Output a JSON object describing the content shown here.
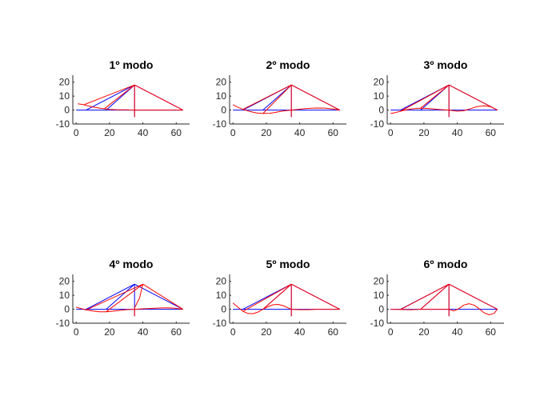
{
  "colors": {
    "structure": "#0000ff",
    "mode_shape": "#ff0000",
    "axis": "#262626",
    "background": "#ffffff"
  },
  "chart_data": [
    {
      "type": "line",
      "title": "1º modo",
      "xlim": [
        -2,
        68
      ],
      "ylim": [
        -10,
        25
      ],
      "xticks": [
        0,
        20,
        40,
        60
      ],
      "yticks": [
        -10,
        0,
        10,
        20
      ],
      "series": [
        {
          "color": "#0000ff",
          "segments": [
            [
              [
                0,
                0
              ],
              [
                64,
                0
              ]
            ],
            [
              [
                35,
                -5
              ],
              [
                35,
                18
              ]
            ],
            [
              [
                6,
                0
              ],
              [
                35,
                18
              ]
            ],
            [
              [
                18,
                0
              ],
              [
                35,
                18
              ]
            ],
            [
              [
                35,
                18
              ],
              [
                64,
                0
              ]
            ]
          ]
        },
        {
          "color": "#ff0000",
          "segments": [
            [
              [
                1,
                4.5
              ],
              [
                4,
                4
              ],
              [
                7,
                3
              ],
              [
                11,
                2
              ],
              [
                15,
                1.2
              ],
              [
                20,
                0.5
              ],
              [
                25,
                0.2
              ],
              [
                30,
                0.2
              ],
              [
                35,
                0
              ],
              [
                45,
                0
              ],
              [
                55,
                0
              ],
              [
                64,
                0
              ]
            ],
            [
              [
                5,
                4
              ],
              [
                35,
                18
              ]
            ],
            [
              [
                17,
                1
              ],
              [
                35,
                18
              ]
            ],
            [
              [
                35,
                18
              ],
              [
                64,
                0
              ]
            ],
            [
              [
                35,
                -5
              ],
              [
                35,
                18
              ]
            ]
          ]
        }
      ]
    },
    {
      "type": "line",
      "title": "2º modo",
      "xlim": [
        -2,
        68
      ],
      "ylim": [
        -10,
        25
      ],
      "xticks": [
        0,
        20,
        40,
        60
      ],
      "yticks": [
        -10,
        0,
        10,
        20
      ],
      "series": [
        {
          "color": "#0000ff",
          "segments": [
            [
              [
                0,
                0
              ],
              [
                64,
                0
              ]
            ],
            [
              [
                35,
                -5
              ],
              [
                35,
                18
              ]
            ],
            [
              [
                6,
                0
              ],
              [
                35,
                18
              ]
            ],
            [
              [
                18,
                0
              ],
              [
                35,
                18
              ]
            ],
            [
              [
                35,
                18
              ],
              [
                64,
                0
              ]
            ]
          ]
        },
        {
          "color": "#ff0000",
          "segments": [
            [
              [
                0,
                3.8
              ],
              [
                3,
                2
              ],
              [
                6,
                0.5
              ],
              [
                10,
                -1
              ],
              [
                14,
                -2
              ],
              [
                18,
                -2.5
              ],
              [
                22,
                -2.3
              ],
              [
                26,
                -1.5
              ],
              [
                30,
                -0.7
              ],
              [
                35,
                0
              ],
              [
                40,
                0.6
              ],
              [
                45,
                1.2
              ],
              [
                50,
                1.5
              ],
              [
                55,
                1.4
              ],
              [
                60,
                0.8
              ],
              [
                64,
                0
              ]
            ],
            [
              [
                6,
                0.5
              ],
              [
                35,
                18
              ]
            ],
            [
              [
                18,
                -2.5
              ],
              [
                35,
                18
              ]
            ],
            [
              [
                35,
                18
              ],
              [
                64,
                0
              ]
            ],
            [
              [
                35,
                -5
              ],
              [
                35,
                18
              ]
            ]
          ]
        }
      ]
    },
    {
      "type": "line",
      "title": "3º modo",
      "xlim": [
        -2,
        68
      ],
      "ylim": [
        -10,
        25
      ],
      "xticks": [
        0,
        20,
        40,
        60
      ],
      "yticks": [
        -10,
        0,
        10,
        20
      ],
      "series": [
        {
          "color": "#0000ff",
          "segments": [
            [
              [
                0,
                0
              ],
              [
                64,
                0
              ]
            ],
            [
              [
                35,
                -5
              ],
              [
                35,
                18
              ]
            ],
            [
              [
                6,
                0
              ],
              [
                35,
                18
              ]
            ],
            [
              [
                18,
                0
              ],
              [
                35,
                18
              ]
            ],
            [
              [
                35,
                18
              ],
              [
                64,
                0
              ]
            ]
          ]
        },
        {
          "color": "#ff0000",
          "segments": [
            [
              [
                0,
                -2.5
              ],
              [
                3,
                -1.8
              ],
              [
                6,
                -0.8
              ],
              [
                10,
                0.3
              ],
              [
                14,
                1
              ],
              [
                18,
                1.3
              ],
              [
                22,
                1.2
              ],
              [
                26,
                0.8
              ],
              [
                30,
                0.3
              ],
              [
                35,
                0
              ],
              [
                40,
                -0.8
              ],
              [
                44,
                -0.5
              ],
              [
                48,
                1
              ],
              [
                52,
                2.5
              ],
              [
                56,
                3
              ],
              [
                60,
                2.4
              ],
              [
                64,
                0
              ]
            ],
            [
              [
                6,
                -0.8
              ],
              [
                35,
                18
              ]
            ],
            [
              [
                18,
                1.3
              ],
              [
                35,
                18
              ]
            ],
            [
              [
                35,
                18
              ],
              [
                64,
                0
              ]
            ],
            [
              [
                35,
                -5
              ],
              [
                35,
                18
              ]
            ]
          ]
        }
      ]
    },
    {
      "type": "line",
      "title": "4º modo",
      "xlim": [
        -2,
        68
      ],
      "ylim": [
        -10,
        25
      ],
      "xticks": [
        0,
        20,
        40,
        60
      ],
      "yticks": [
        -10,
        0,
        10,
        20
      ],
      "series": [
        {
          "color": "#0000ff",
          "segments": [
            [
              [
                0,
                0
              ],
              [
                64,
                0
              ]
            ],
            [
              [
                35,
                -5
              ],
              [
                35,
                18
              ]
            ],
            [
              [
                6,
                0
              ],
              [
                35,
                18
              ]
            ],
            [
              [
                18,
                0
              ],
              [
                35,
                18
              ]
            ],
            [
              [
                35,
                18
              ],
              [
                64,
                0
              ]
            ]
          ]
        },
        {
          "color": "#ff0000",
          "segments": [
            [
              [
                0,
                1.5
              ],
              [
                3,
                0.5
              ],
              [
                6,
                -0.5
              ],
              [
                10,
                -1.3
              ],
              [
                14,
                -1.8
              ],
              [
                18,
                -1.8
              ],
              [
                22,
                -1.4
              ],
              [
                26,
                -0.8
              ],
              [
                30,
                -0.3
              ],
              [
                35,
                0
              ],
              [
                40,
                0.3
              ],
              [
                45,
                0.6
              ],
              [
                50,
                0.9
              ],
              [
                55,
                1
              ],
              [
                60,
                0.7
              ],
              [
                64,
                0
              ]
            ],
            [
              [
                6,
                -0.5
              ],
              [
                40,
                18
              ]
            ],
            [
              [
                18,
                -1.8
              ],
              [
                40,
                18
              ]
            ],
            [
              [
                40,
                18
              ],
              [
                64,
                0
              ]
            ],
            [
              [
                35,
                -5
              ],
              [
                35,
                1
              ],
              [
                38,
                8
              ],
              [
                40,
                18
              ]
            ]
          ]
        }
      ]
    },
    {
      "type": "line",
      "title": "5º modo",
      "xlim": [
        -2,
        68
      ],
      "ylim": [
        -10,
        25
      ],
      "xticks": [
        0,
        20,
        40,
        60
      ],
      "yticks": [
        -10,
        0,
        10,
        20
      ],
      "series": [
        {
          "color": "#0000ff",
          "segments": [
            [
              [
                0,
                0
              ],
              [
                64,
                0
              ]
            ],
            [
              [
                35,
                -5
              ],
              [
                35,
                18
              ]
            ],
            [
              [
                6,
                0
              ],
              [
                35,
                18
              ]
            ],
            [
              [
                18,
                0
              ],
              [
                35,
                18
              ]
            ],
            [
              [
                35,
                18
              ],
              [
                64,
                0
              ]
            ]
          ]
        },
        {
          "color": "#ff0000",
          "segments": [
            [
              [
                0,
                4.5
              ],
              [
                3,
                1.5
              ],
              [
                6,
                -1.5
              ],
              [
                9,
                -3
              ],
              [
                12,
                -3.2
              ],
              [
                15,
                -2
              ],
              [
                18,
                0
              ],
              [
                21,
                1.8
              ],
              [
                24,
                3.2
              ],
              [
                27,
                3.5
              ],
              [
                30,
                2.6
              ],
              [
                33,
                1
              ],
              [
                35,
                0
              ],
              [
                40,
                -0.3
              ],
              [
                45,
                -0.3
              ],
              [
                50,
                0
              ],
              [
                55,
                0
              ],
              [
                64,
                0
              ]
            ],
            [
              [
                6,
                -1.5
              ],
              [
                35,
                18
              ]
            ],
            [
              [
                18,
                0
              ],
              [
                35,
                18
              ]
            ],
            [
              [
                35,
                18
              ],
              [
                64,
                0
              ]
            ],
            [
              [
                35,
                -5
              ],
              [
                35,
                18
              ]
            ]
          ]
        }
      ]
    },
    {
      "type": "line",
      "title": "6º modo",
      "xlim": [
        -2,
        68
      ],
      "ylim": [
        -10,
        25
      ],
      "xticks": [
        0,
        20,
        40,
        60
      ],
      "yticks": [
        -10,
        0,
        10,
        20
      ],
      "series": [
        {
          "color": "#0000ff",
          "segments": [
            [
              [
                0,
                0
              ],
              [
                64,
                0
              ]
            ],
            [
              [
                35,
                -5
              ],
              [
                35,
                18
              ]
            ],
            [
              [
                6,
                0
              ],
              [
                35,
                18
              ]
            ],
            [
              [
                18,
                0
              ],
              [
                35,
                18
              ]
            ],
            [
              [
                35,
                18
              ],
              [
                64,
                0
              ]
            ]
          ]
        },
        {
          "color": "#ff0000",
          "segments": [
            [
              [
                0,
                0
              ],
              [
                6,
                -0.2
              ],
              [
                12,
                -0.3
              ],
              [
                18,
                0
              ],
              [
                24,
                0
              ],
              [
                30,
                0
              ],
              [
                35,
                0
              ],
              [
                38,
                -1.2
              ],
              [
                41,
                0.5
              ],
              [
                44,
                3
              ],
              [
                47,
                4
              ],
              [
                50,
                3
              ],
              [
                53,
                0.5
              ],
              [
                56,
                -2.5
              ],
              [
                59,
                -4
              ],
              [
                62,
                -3
              ],
              [
                64,
                0
              ]
            ],
            [
              [
                6,
                -0.2
              ],
              [
                35,
                18
              ]
            ],
            [
              [
                18,
                0
              ],
              [
                35,
                18
              ]
            ],
            [
              [
                35,
                18
              ],
              [
                64,
                0
              ]
            ],
            [
              [
                35,
                -5
              ],
              [
                35,
                18
              ]
            ]
          ]
        }
      ]
    }
  ]
}
